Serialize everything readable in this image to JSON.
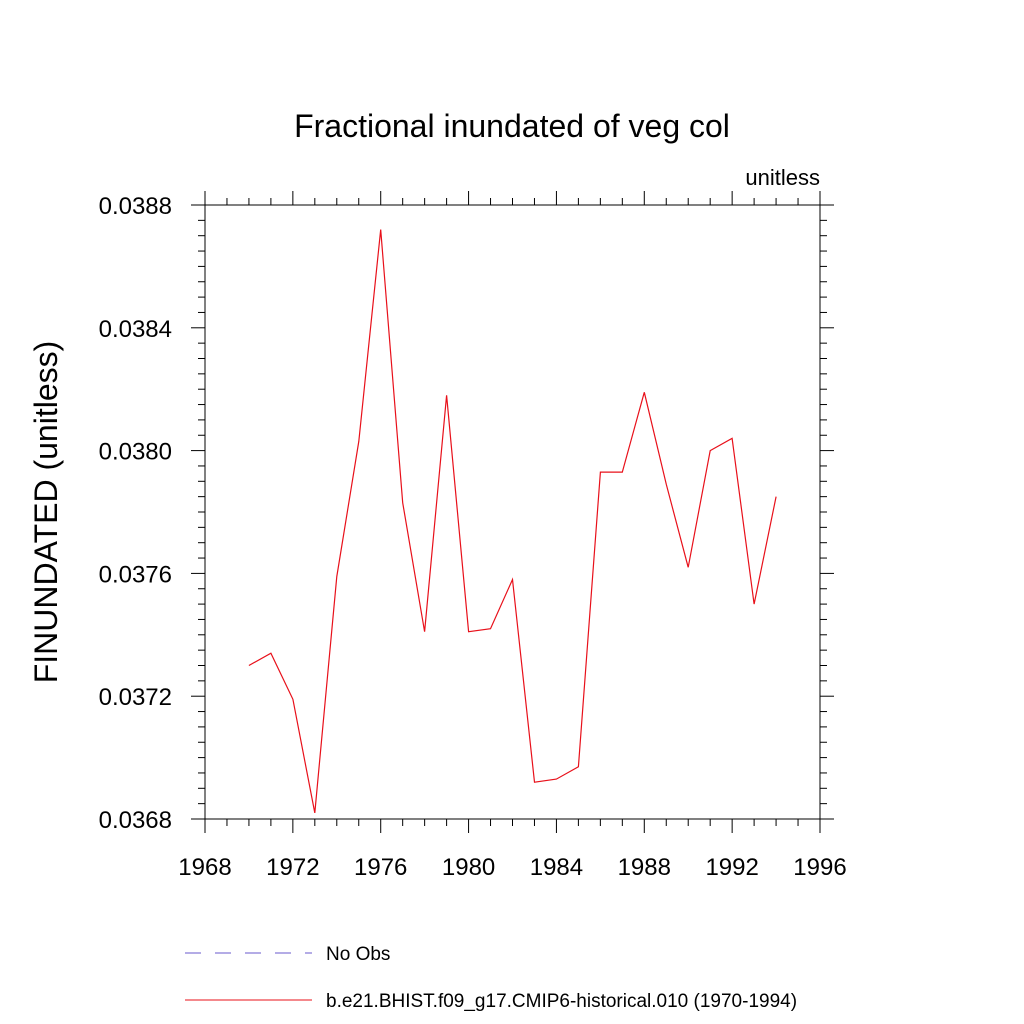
{
  "chart_data": {
    "type": "line",
    "title": "Fractional inundated of veg col",
    "units_label": "unitless",
    "ylabel": "FINUNDATED  (unitless)",
    "xlabel": "",
    "xlim": [
      1968,
      1996
    ],
    "ylim": [
      0.0368,
      0.0388
    ],
    "x_ticks": [
      1968,
      1972,
      1976,
      1980,
      1984,
      1988,
      1992,
      1996
    ],
    "x_tick_labels": [
      "1968",
      "1972",
      "1976",
      "1980",
      "1984",
      "1988",
      "1992",
      "1996"
    ],
    "x_minor_step": 1,
    "y_ticks": [
      0.0368,
      0.0372,
      0.0376,
      0.038,
      0.0384,
      0.0388
    ],
    "y_tick_labels": [
      "0.0368",
      "0.0372",
      "0.0376",
      "0.0380",
      "0.0384",
      "0.0388"
    ],
    "y_minor_step": 5e-05,
    "grid": false,
    "legend_position": "bottom",
    "series": [
      {
        "name": "b.e21.BHIST.f09_g17.CMIP6-historical.010 (1970-1994)",
        "color": "#e8101a",
        "style": "solid",
        "x": [
          1970,
          1971,
          1972,
          1973,
          1974,
          1975,
          1976,
          1977,
          1978,
          1979,
          1980,
          1981,
          1982,
          1983,
          1984,
          1985,
          1986,
          1987,
          1988,
          1989,
          1990,
          1991,
          1992,
          1993,
          1994
        ],
        "y": [
          0.0373,
          0.03734,
          0.03719,
          0.03682,
          0.03759,
          0.03803,
          0.03872,
          0.03783,
          0.03741,
          0.03818,
          0.03741,
          0.03742,
          0.03758,
          0.03692,
          0.03693,
          0.03697,
          0.03793,
          0.03793,
          0.03819,
          0.03789,
          0.03762,
          0.038,
          0.03804,
          0.0375,
          0.03785
        ]
      }
    ],
    "legend": [
      {
        "label": "No Obs",
        "color": "#6a5acd",
        "style": "dashed"
      },
      {
        "label": "b.e21.BHIST.f09_g17.CMIP6-historical.010 (1970-1994)",
        "color": "#e8101a",
        "style": "solid"
      }
    ]
  }
}
